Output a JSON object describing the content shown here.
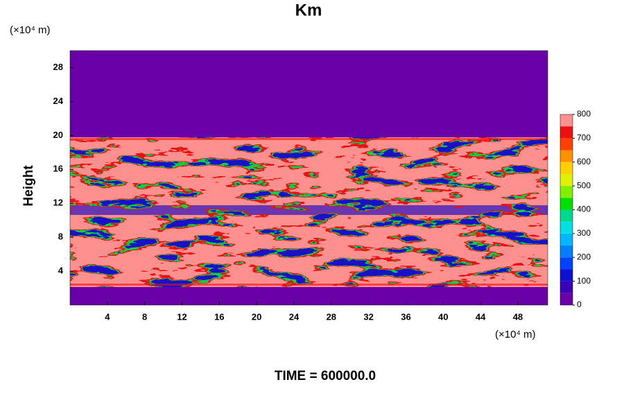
{
  "chart_data": {
    "type": "contour",
    "title": "Km",
    "ylabel": "Height",
    "y_unit_label": "(×10⁴ m)",
    "x_unit_label": "(×10⁴ m)",
    "footer": "TIME = 600000.0",
    "xlim": [
      0,
      51.2
    ],
    "ylim": [
      0,
      30
    ],
    "xticks": [
      4,
      8,
      12,
      16,
      20,
      24,
      28,
      32,
      36,
      40,
      44,
      48
    ],
    "yticks": [
      4,
      8,
      12,
      16,
      20,
      24,
      28
    ],
    "colorbar": {
      "levels": [
        0,
        50,
        100,
        150,
        200,
        250,
        300,
        350,
        400,
        450,
        500,
        550,
        600,
        650,
        700,
        750,
        800
      ],
      "colors": [
        "#6a00a8",
        "#3a00b8",
        "#1010d0",
        "#0040ff",
        "#0080ff",
        "#00b8ff",
        "#00e0e0",
        "#00d890",
        "#00e000",
        "#80f000",
        "#e0f000",
        "#ffd000",
        "#ff9000",
        "#ff4000",
        "#ee1010",
        "#ff9090"
      ],
      "ticks": [
        0,
        100,
        200,
        300,
        400,
        500,
        600,
        700,
        800
      ]
    }
  }
}
